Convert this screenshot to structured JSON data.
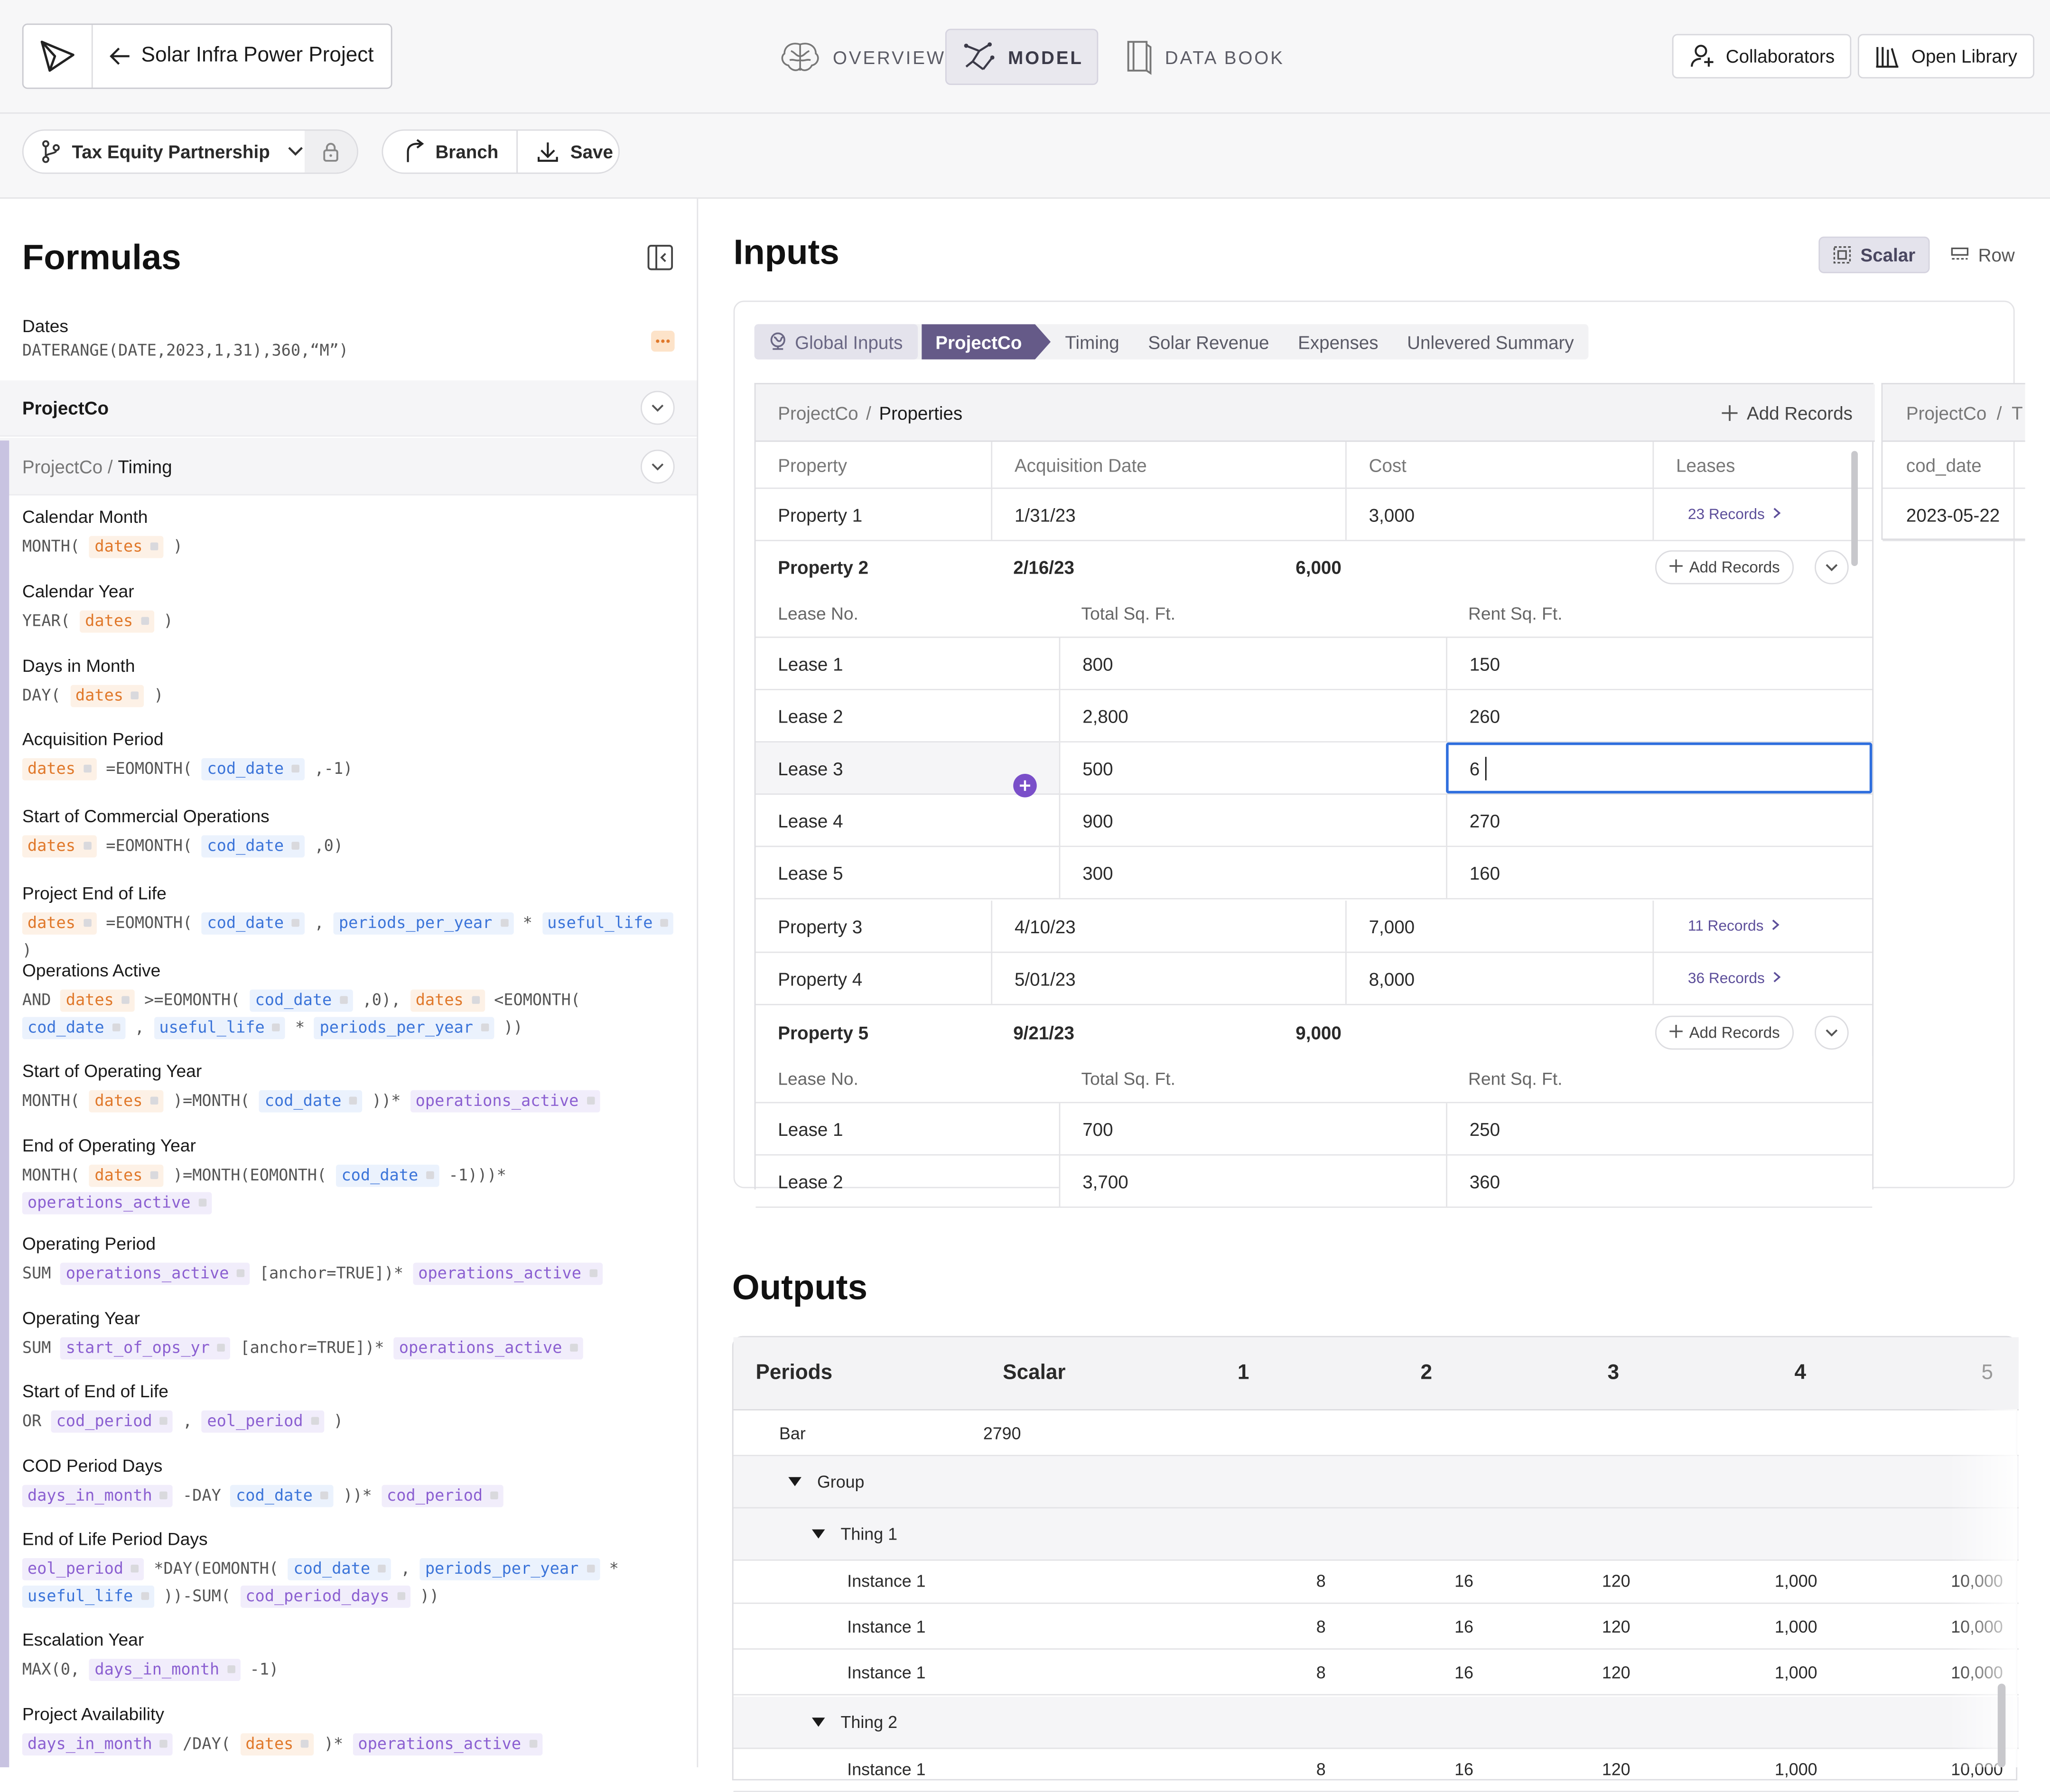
{
  "header": {
    "project_title": "Solar Infra Power Project",
    "nav_tabs": [
      {
        "label": "OVERVIEW",
        "active": false
      },
      {
        "label": "MODEL",
        "active": true
      },
      {
        "label": "DATA BOOK",
        "active": false
      }
    ],
    "collaborators_label": "Collaborators",
    "open_library_label": "Open Library"
  },
  "toolbar": {
    "branch_name": "Tax Equity Partnership",
    "branch_label": "Branch",
    "save_label": "Save"
  },
  "formulas": {
    "title": "Formulas",
    "dates": {
      "name": "Dates",
      "expr": "DATERANGE(DATE,2023,1,31),360,“M”)"
    },
    "section1": "ProjectCo",
    "section2_prefix": "ProjectCo / ",
    "section2_name": "Timing",
    "items": [
      {
        "name": "Calendar Month",
        "parts": [
          [
            "t",
            "MONTH( "
          ],
          [
            "o",
            "dates"
          ],
          [
            "t",
            " )"
          ]
        ]
      },
      {
        "name": "Calendar Year",
        "parts": [
          [
            "t",
            "YEAR( "
          ],
          [
            "o",
            "dates"
          ],
          [
            "t",
            " )"
          ]
        ]
      },
      {
        "name": "Days in Month",
        "parts": [
          [
            "t",
            "DAY( "
          ],
          [
            "o",
            "dates"
          ],
          [
            "t",
            " )"
          ]
        ]
      },
      {
        "name": "Acquisition Period",
        "parts": [
          [
            "o",
            "dates"
          ],
          [
            "t",
            " =EOMONTH( "
          ],
          [
            "b",
            "cod_date"
          ],
          [
            "t",
            " ,-1)"
          ]
        ]
      },
      {
        "name": "Start of Commercial Operations",
        "parts": [
          [
            "o",
            "dates"
          ],
          [
            "t",
            " =EOMONTH( "
          ],
          [
            "b",
            "cod_date"
          ],
          [
            "t",
            " ,0)"
          ]
        ]
      },
      {
        "name": "Project End of Life",
        "parts": [
          [
            "o",
            "dates"
          ],
          [
            "t",
            " =EOMONTH( "
          ],
          [
            "b",
            "cod_date"
          ],
          [
            "t",
            " , "
          ],
          [
            "b",
            "periods_per_year"
          ],
          [
            "t",
            " * "
          ],
          [
            "b",
            "useful_life"
          ],
          [
            "t",
            " )"
          ]
        ]
      },
      {
        "name": "Operations Active",
        "parts": [
          [
            "t",
            "AND "
          ],
          [
            "o",
            "dates"
          ],
          [
            "t",
            " >=EOMONTH( "
          ],
          [
            "b",
            "cod_date"
          ],
          [
            "t",
            " ,0), "
          ],
          [
            "o",
            "dates"
          ],
          [
            "t",
            " <EOMONTH( "
          ],
          [
            "b",
            "cod_date"
          ],
          [
            "t",
            " , "
          ],
          [
            "b",
            "useful_life"
          ],
          [
            "t",
            " * "
          ],
          [
            "b",
            "periods_per_year"
          ],
          [
            "t",
            " ))"
          ]
        ]
      },
      {
        "name": "Start of Operating Year",
        "parts": [
          [
            "t",
            "MONTH( "
          ],
          [
            "o",
            "dates"
          ],
          [
            "t",
            " )=MONTH( "
          ],
          [
            "b",
            "cod_date"
          ],
          [
            "t",
            " ))* "
          ],
          [
            "p",
            "operations_active"
          ]
        ]
      },
      {
        "name": "End of Operating Year",
        "parts": [
          [
            "t",
            "MONTH( "
          ],
          [
            "o",
            "dates"
          ],
          [
            "t",
            " )=MONTH(EOMONTH( "
          ],
          [
            "b",
            "cod_date"
          ],
          [
            "t",
            " -1)))* "
          ],
          [
            "p",
            "operations_active"
          ]
        ]
      },
      {
        "name": "Operating Period",
        "parts": [
          [
            "t",
            "SUM "
          ],
          [
            "p",
            "operations_active"
          ],
          [
            "t",
            " [anchor=TRUE])* "
          ],
          [
            "p",
            "operations_active"
          ]
        ]
      },
      {
        "name": "Operating Year",
        "parts": [
          [
            "t",
            "SUM "
          ],
          [
            "p",
            "start_of_ops_yr"
          ],
          [
            "t",
            " [anchor=TRUE])* "
          ],
          [
            "p",
            "operations_active"
          ]
        ]
      },
      {
        "name": "Start of End of Life",
        "parts": [
          [
            "t",
            "OR "
          ],
          [
            "p",
            "cod_period"
          ],
          [
            "t",
            " , "
          ],
          [
            "p",
            "eol_period"
          ],
          [
            "t",
            " )"
          ]
        ]
      },
      {
        "name": "COD Period Days",
        "parts": [
          [
            "p",
            "days_in_month"
          ],
          [
            "t",
            " -DAY "
          ],
          [
            "b",
            "cod_date"
          ],
          [
            "t",
            " ))* "
          ],
          [
            "p",
            "cod_period"
          ]
        ]
      },
      {
        "name": "End of Life Period Days",
        "parts": [
          [
            "p",
            "eol_period"
          ],
          [
            "t",
            " *DAY(EOMONTH( "
          ],
          [
            "b",
            "cod_date"
          ],
          [
            "t",
            " , "
          ],
          [
            "b",
            "periods_per_year"
          ],
          [
            "t",
            " * "
          ],
          [
            "b",
            "useful_life"
          ],
          [
            "t",
            " ))-SUM( "
          ],
          [
            "p",
            "cod_period_days"
          ],
          [
            "t",
            " ))"
          ]
        ]
      },
      {
        "name": "Escalation Year",
        "parts": [
          [
            "t",
            "MAX(0, "
          ],
          [
            "p",
            "days_in_month"
          ],
          [
            "t",
            " -1)"
          ]
        ]
      },
      {
        "name": "Project Availability",
        "parts": [
          [
            "p",
            "days_in_month"
          ],
          [
            "t",
            " /DAY( "
          ],
          [
            "o",
            "dates"
          ],
          [
            "t",
            " )* "
          ],
          [
            "p",
            "operations_active"
          ]
        ]
      }
    ]
  },
  "inputs": {
    "title": "Inputs",
    "view_scalar": "Scalar",
    "view_row": "Row",
    "tabs": [
      "Global Inputs",
      "ProjectCo",
      "Timing",
      "Solar Revenue",
      "Expenses",
      "Unlevered Summary"
    ],
    "breadcrumb_parent": "ProjectCo",
    "breadcrumb_sep": "/",
    "breadcrumb_current": "Properties",
    "add_records_label": "Add Records",
    "columns": [
      "Property",
      "Acquisition Date",
      "Cost",
      "Leases"
    ],
    "sub_columns": [
      "Lease No.",
      "Total Sq. Ft.",
      "Rent Sq. Ft."
    ],
    "p1": {
      "name": "Property 1",
      "date": "1/31/23",
      "cost": "3,000",
      "leases": "23 Records"
    },
    "p2": {
      "name": "Property 2",
      "date": "2/16/23",
      "cost": "6,000"
    },
    "p2_leases": [
      {
        "no": "Lease 1",
        "total": "800",
        "rent": "150"
      },
      {
        "no": "Lease 2",
        "total": "2,800",
        "rent": "260"
      },
      {
        "no": "Lease 3",
        "total": "500",
        "rent": "6"
      },
      {
        "no": "Lease 4",
        "total": "900",
        "rent": "270"
      },
      {
        "no": "Lease 5",
        "total": "300",
        "rent": "160"
      }
    ],
    "p3": {
      "name": "Property 3",
      "date": "4/10/23",
      "cost": "7,000",
      "leases": "11 Records"
    },
    "p4": {
      "name": "Property 4",
      "date": "5/01/23",
      "cost": "8,000",
      "leases": "36 Records"
    },
    "p5": {
      "name": "Property 5",
      "date": "9/21/23",
      "cost": "9,000"
    },
    "p5_leases": [
      {
        "no": "Lease 1",
        "total": "700",
        "rent": "250"
      },
      {
        "no": "Lease 2",
        "total": "3,700",
        "rent": "360"
      }
    ],
    "side_breadcrumb": "ProjectCo  /  T",
    "side_col": "cod_date",
    "side_val": "2023-05-22"
  },
  "outputs": {
    "title": "Outputs",
    "header": [
      "Periods",
      "Scalar",
      "1",
      "2",
      "3",
      "4",
      "5"
    ],
    "bar": {
      "label": "Bar",
      "value": "2790"
    },
    "group": "Group",
    "thing1": "Thing 1",
    "thing2": "Thing 2",
    "instances": [
      {
        "label": "Instance 1",
        "values": [
          "8",
          "16",
          "120",
          "1,000",
          "10,000"
        ]
      },
      {
        "label": "Instance 1",
        "values": [
          "8",
          "16",
          "120",
          "1,000",
          "10,000"
        ]
      },
      {
        "label": "Instance 1",
        "values": [
          "8",
          "16",
          "120",
          "1,000",
          "10,000"
        ]
      }
    ],
    "partial": {
      "label": "Instance 1",
      "values": [
        "8",
        "16",
        "120",
        "1,000",
        "10,000"
      ]
    }
  },
  "colors": {
    "accent": "#655a88",
    "orange_token": "#e0782a",
    "blue_token": "#3b74d9",
    "purple_token": "#8b5fd1",
    "focus": "#2f6fde"
  }
}
